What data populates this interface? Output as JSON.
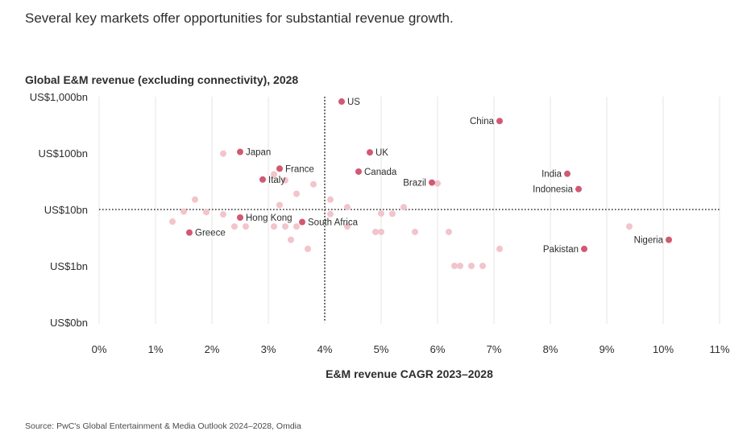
{
  "headline": "Several key markets offer opportunities for substantial revenue growth.",
  "source": "Source: PwC's Global Entertainment & Media Outlook 2024–2028, Omdia",
  "colors": {
    "highlight": "#d05a72",
    "background_point": "#f2c4cc",
    "grid": "#e6e6e6",
    "reference_line": "#333333"
  },
  "chart_data": {
    "type": "scatter",
    "title": "Global E&M revenue (excluding connectivity), 2028",
    "xlabel": "E&M revenue CAGR 2023–2028",
    "ylabel": "",
    "xlim": [
      0,
      11
    ],
    "ylim": [
      0.1,
      1000
    ],
    "yscale": "log",
    "xticks": [
      {
        "value": 0,
        "label": "0%"
      },
      {
        "value": 1,
        "label": "1%"
      },
      {
        "value": 2,
        "label": "2%"
      },
      {
        "value": 3,
        "label": "3%"
      },
      {
        "value": 4,
        "label": "4%"
      },
      {
        "value": 5,
        "label": "5%"
      },
      {
        "value": 6,
        "label": "6%"
      },
      {
        "value": 7,
        "label": "7%"
      },
      {
        "value": 8,
        "label": "8%"
      },
      {
        "value": 9,
        "label": "9%"
      },
      {
        "value": 10,
        "label": "10%"
      },
      {
        "value": 11,
        "label": "11%"
      }
    ],
    "yticks": [
      {
        "value": 1000,
        "label": "US$1,000bn"
      },
      {
        "value": 100,
        "label": "US$100bn"
      },
      {
        "value": 10,
        "label": "US$10bn"
      },
      {
        "value": 1,
        "label": "US$1bn"
      },
      {
        "value": 0.1,
        "label": "US$0bn"
      }
    ],
    "reference_lines": {
      "x": 4,
      "y": 10
    },
    "grid": "vertical",
    "labeled_points": [
      {
        "name": "US",
        "x": 4.3,
        "y": 820,
        "label_side": "right"
      },
      {
        "name": "China",
        "x": 7.1,
        "y": 370,
        "label_side": "left"
      },
      {
        "name": "Japan",
        "x": 2.5,
        "y": 105,
        "label_side": "right"
      },
      {
        "name": "UK",
        "x": 4.8,
        "y": 103,
        "label_side": "right"
      },
      {
        "name": "France",
        "x": 3.2,
        "y": 53,
        "label_side": "right"
      },
      {
        "name": "Canada",
        "x": 4.6,
        "y": 47,
        "label_side": "right"
      },
      {
        "name": "India",
        "x": 8.3,
        "y": 43,
        "label_side": "left"
      },
      {
        "name": "Italy",
        "x": 2.9,
        "y": 34,
        "label_side": "right"
      },
      {
        "name": "Brazil",
        "x": 5.9,
        "y": 30,
        "label_side": "left"
      },
      {
        "name": "Indonesia",
        "x": 8.5,
        "y": 23,
        "label_side": "left"
      },
      {
        "name": "Hong Kong",
        "x": 2.5,
        "y": 7.2,
        "label_side": "right"
      },
      {
        "name": "South Africa",
        "x": 3.6,
        "y": 6.0,
        "label_side": "right"
      },
      {
        "name": "Greece",
        "x": 1.6,
        "y": 3.9,
        "label_side": "right"
      },
      {
        "name": "Nigeria",
        "x": 10.1,
        "y": 2.9,
        "label_side": "left"
      },
      {
        "name": "Pakistan",
        "x": 8.6,
        "y": 2.0,
        "label_side": "left"
      }
    ],
    "other_points": [
      {
        "x": 2.2,
        "y": 98
      },
      {
        "x": 3.1,
        "y": 42
      },
      {
        "x": 3.3,
        "y": 33
      },
      {
        "x": 3.8,
        "y": 28
      },
      {
        "x": 6.0,
        "y": 29
      },
      {
        "x": 3.5,
        "y": 19
      },
      {
        "x": 1.7,
        "y": 15
      },
      {
        "x": 4.1,
        "y": 15
      },
      {
        "x": 3.2,
        "y": 12
      },
      {
        "x": 4.4,
        "y": 11
      },
      {
        "x": 5.4,
        "y": 11
      },
      {
        "x": 1.5,
        "y": 9.2
      },
      {
        "x": 1.9,
        "y": 9.0
      },
      {
        "x": 2.2,
        "y": 8.2
      },
      {
        "x": 4.1,
        "y": 8.3
      },
      {
        "x": 5.0,
        "y": 8.5
      },
      {
        "x": 5.2,
        "y": 8.4
      },
      {
        "x": 1.3,
        "y": 6.1
      },
      {
        "x": 2.4,
        "y": 5.0
      },
      {
        "x": 2.6,
        "y": 5.0
      },
      {
        "x": 3.1,
        "y": 5.0
      },
      {
        "x": 3.3,
        "y": 5.0
      },
      {
        "x": 3.5,
        "y": 5.0
      },
      {
        "x": 4.4,
        "y": 5.0
      },
      {
        "x": 9.4,
        "y": 5.0
      },
      {
        "x": 4.9,
        "y": 4.0
      },
      {
        "x": 5.0,
        "y": 4.0
      },
      {
        "x": 5.6,
        "y": 4.0
      },
      {
        "x": 6.2,
        "y": 4.0
      },
      {
        "x": 3.4,
        "y": 2.9
      },
      {
        "x": 3.7,
        "y": 2.0
      },
      {
        "x": 7.1,
        "y": 2.0
      },
      {
        "x": 6.3,
        "y": 1.0
      },
      {
        "x": 6.4,
        "y": 1.0
      },
      {
        "x": 6.6,
        "y": 1.0
      },
      {
        "x": 6.8,
        "y": 1.0
      }
    ]
  }
}
